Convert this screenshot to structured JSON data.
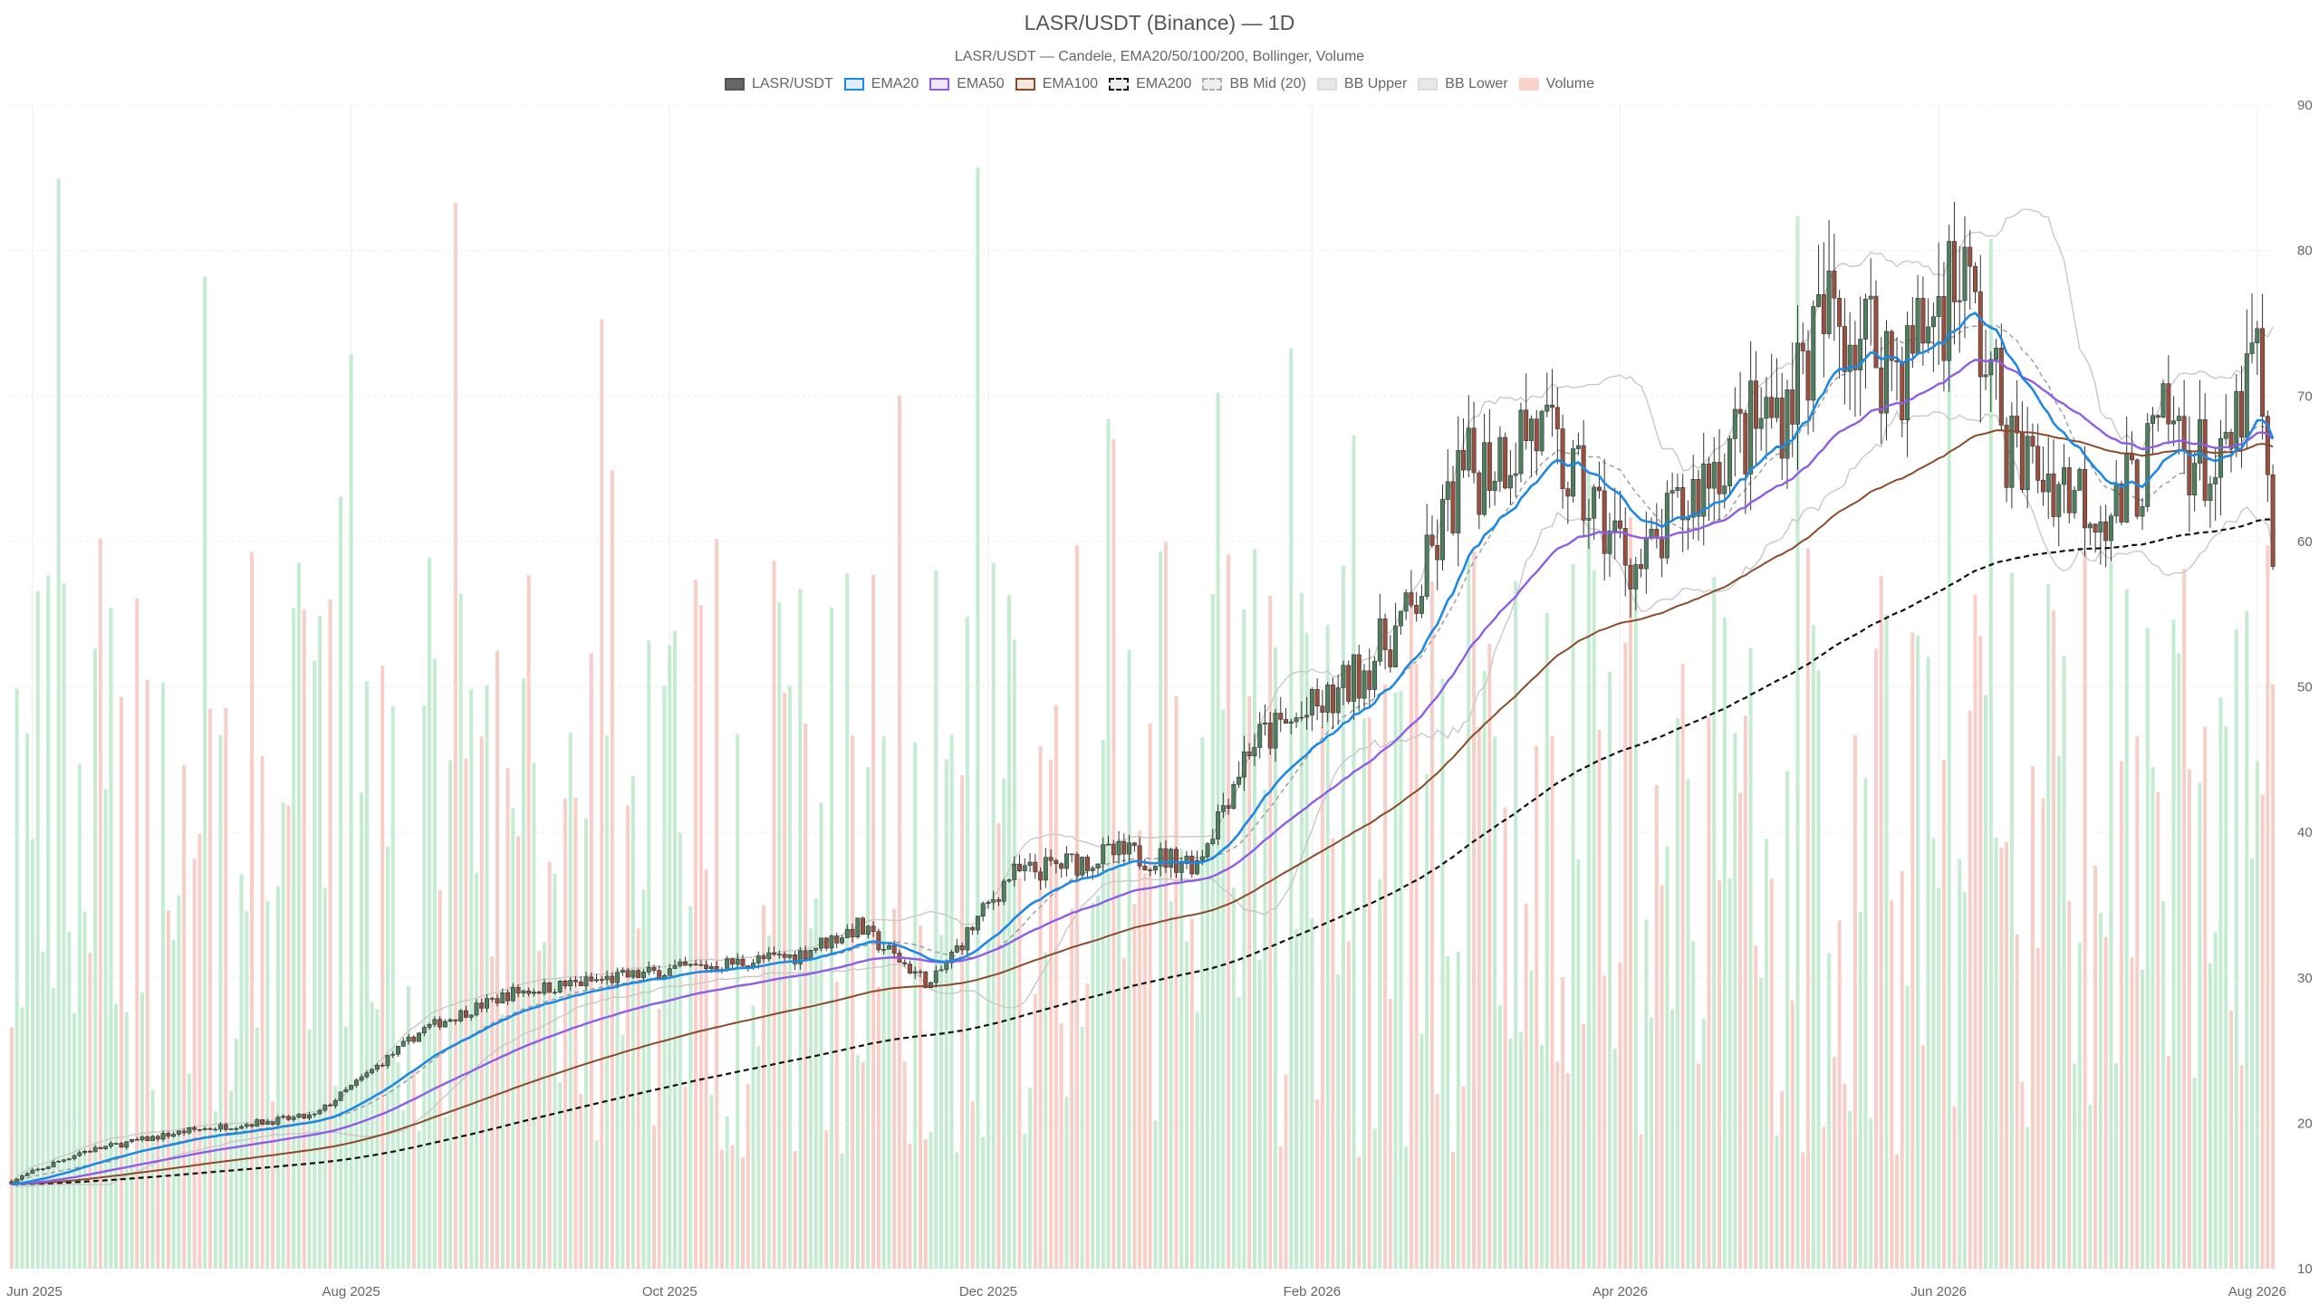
{
  "chart_data": {
    "type": "candlestick",
    "title": "LASR/USDT (Binance) — 1D",
    "subtitle": "LASR/USDT — Candele, EMA20/50/100/200, Bollinger, Volume",
    "ylim": [
      10,
      90
    ],
    "y_ticks": [
      10,
      20,
      30,
      40,
      50,
      60,
      70,
      80,
      90
    ],
    "x_range": [
      "2025-05-28",
      "2026-08-04"
    ],
    "x_ticks": [
      {
        "date": "2025-06-01",
        "label": "Jun 2025"
      },
      {
        "date": "2025-08-01",
        "label": "Aug 2025"
      },
      {
        "date": "2025-10-01",
        "label": "Oct 2025"
      },
      {
        "date": "2025-12-01",
        "label": "Dec 2025"
      },
      {
        "date": "2026-02-01",
        "label": "Feb 2026"
      },
      {
        "date": "2026-04-01",
        "label": "Apr 2026"
      },
      {
        "date": "2026-06-01",
        "label": "Jun 2026"
      },
      {
        "date": "2026-08-01",
        "label": "Aug 2026"
      }
    ],
    "legend": [
      {
        "label": "LASR/USDT",
        "fill": "#666666",
        "border": "#555555",
        "dashed": false
      },
      {
        "label": "EMA20",
        "fill": "#dceefc",
        "border": "#1e88e5",
        "dashed": false
      },
      {
        "label": "EMA50",
        "fill": "#efe6fb",
        "border": "#8e5ce6",
        "dashed": false
      },
      {
        "label": "EMA100",
        "fill": "#f3e6dc",
        "border": "#8b4a2b",
        "dashed": false
      },
      {
        "label": "EMA200",
        "fill": "#eeeeee",
        "border": "#111111",
        "dashed": true
      },
      {
        "label": "BB Mid (20)",
        "fill": "#eeeeee",
        "border": "#aaaaaa",
        "dashed": true
      },
      {
        "label": "BB Upper",
        "fill": "#e8e8e8",
        "border": "#dddddd",
        "dashed": false
      },
      {
        "label": "BB Lower",
        "fill": "#e8e8e8",
        "border": "#dddddd",
        "dashed": false
      },
      {
        "label": "Volume",
        "fill": "#f9d2cc",
        "border": "#f9d2cc",
        "dashed": false
      }
    ],
    "colors": {
      "up": "#4e7f5e",
      "down": "#9b4f3f",
      "ema20": "#1e88e5",
      "ema50": "#8e5ce6",
      "ema100": "#8b4a2b",
      "ema200": "#111111",
      "bb_mid": "#999999",
      "bb_band": "#c8c8c8",
      "vol_up": "#c5ecd2",
      "vol_down": "#f8cfc8",
      "grid": "#ececec"
    },
    "price_anchors": [
      {
        "date": "2025-05-28",
        "close": 16.0
      },
      {
        "date": "2025-06-10",
        "close": 18.0
      },
      {
        "date": "2025-07-01",
        "close": 19.5
      },
      {
        "date": "2025-07-25",
        "close": 20.5
      },
      {
        "date": "2025-08-15",
        "close": 26.5
      },
      {
        "date": "2025-09-01",
        "close": 29.0
      },
      {
        "date": "2025-10-01",
        "close": 30.5
      },
      {
        "date": "2025-10-25",
        "close": 31.5
      },
      {
        "date": "2025-11-06",
        "close": 33.5
      },
      {
        "date": "2025-11-20",
        "close": 29.5
      },
      {
        "date": "2025-12-05",
        "close": 37.0
      },
      {
        "date": "2025-12-25",
        "close": 38.5
      },
      {
        "date": "2026-01-10",
        "close": 38.0
      },
      {
        "date": "2026-01-20",
        "close": 46.0
      },
      {
        "date": "2026-02-05",
        "close": 49.0
      },
      {
        "date": "2026-02-20",
        "close": 55.0
      },
      {
        "date": "2026-03-01",
        "close": 64.0
      },
      {
        "date": "2026-03-15",
        "close": 68.0
      },
      {
        "date": "2026-03-25",
        "close": 63.0
      },
      {
        "date": "2026-04-05",
        "close": 58.0
      },
      {
        "date": "2026-04-20",
        "close": 66.0
      },
      {
        "date": "2026-05-01",
        "close": 69.0
      },
      {
        "date": "2026-05-12",
        "close": 76.0
      },
      {
        "date": "2026-05-25",
        "close": 72.0
      },
      {
        "date": "2026-06-05",
        "close": 79.0
      },
      {
        "date": "2026-06-15",
        "close": 66.0
      },
      {
        "date": "2026-06-25",
        "close": 64.0
      },
      {
        "date": "2026-07-05",
        "close": 62.0
      },
      {
        "date": "2026-07-15",
        "close": 68.0
      },
      {
        "date": "2026-07-25",
        "close": 64.0
      },
      {
        "date": "2026-08-01",
        "close": 73.0
      },
      {
        "date": "2026-08-04",
        "close": 57.0
      }
    ],
    "volume_range": [
      0,
      80
    ]
  }
}
